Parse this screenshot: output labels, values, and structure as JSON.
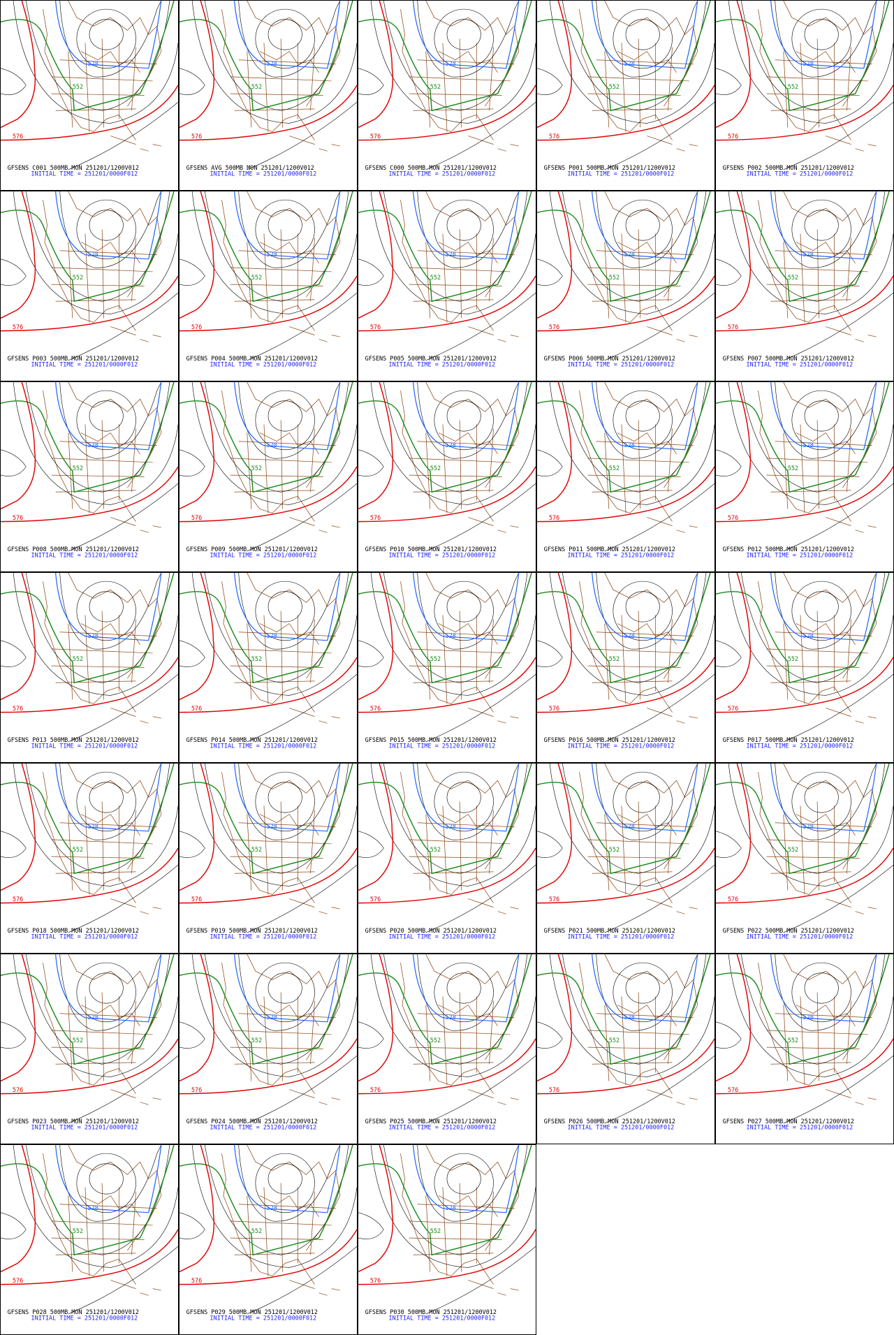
{
  "contour_labels": [
    "528",
    "552",
    "576"
  ],
  "panels": [
    {
      "title": "GFSENS C001 500MB MON 251201/1200V012",
      "init": "INITIAL TIME = 251201/0000F012"
    },
    {
      "title": "GFSENS AVG 500MB MON 251201/1200V012",
      "init": "INITIAL TIME = 251201/0000F012"
    },
    {
      "title": "GFSENS C000 500MB MON 251201/1200V012",
      "init": "INITIAL TIME = 251201/0000F012"
    },
    {
      "title": "GFSENS P001 500MB MON 251201/1200V012",
      "init": "INITIAL TIME = 251201/0000F012"
    },
    {
      "title": "GFSENS P002 500MB MON 251201/1200V012",
      "init": "INITIAL TIME = 251201/0000F012"
    },
    {
      "title": "GFSENS P003 500MB MON 251201/1200V012",
      "init": "INITIAL TIME = 251201/0000F012"
    },
    {
      "title": "GFSENS P004 500MB MON 251201/1200V012",
      "init": "INITIAL TIME = 251201/0000F012"
    },
    {
      "title": "GFSENS P005 500MB MON 251201/1200V012",
      "init": "INITIAL TIME = 251201/0000F012"
    },
    {
      "title": "GFSENS P006 500MB MON 251201/1200V012",
      "init": "INITIAL TIME = 251201/0000F012"
    },
    {
      "title": "GFSENS P007 500MB MON 251201/1200V012",
      "init": "INITIAL TIME = 251201/0000F012"
    },
    {
      "title": "GFSENS P008 500MB MON 251201/1200V012",
      "init": "INITIAL TIME = 251201/0000F012"
    },
    {
      "title": "GFSENS P009 500MB MON 251201/1200V012",
      "init": "INITIAL TIME = 251201/0000F012"
    },
    {
      "title": "GFSENS P010 500MB MON 251201/1200V012",
      "init": "INITIAL TIME = 251201/0000F012"
    },
    {
      "title": "GFSENS P011 500MB MON 251201/1200V012",
      "init": "INITIAL TIME = 251201/0000F012"
    },
    {
      "title": "GFSENS P012 500MB MON 251201/1200V012",
      "init": "INITIAL TIME = 251201/0000F012"
    },
    {
      "title": "GFSENS P013 500MB MON 251201/1200V012",
      "init": "INITIAL TIME = 251201/0000F012"
    },
    {
      "title": "GFSENS P014 500MB MON 251201/1200V012",
      "init": "INITIAL TIME = 251201/0000F012"
    },
    {
      "title": "GFSENS P015 500MB MON 251201/1200V012",
      "init": "INITIAL TIME = 251201/0000F012"
    },
    {
      "title": "GFSENS P016 500MB MON 251201/1200V012",
      "init": "INITIAL TIME = 251201/0000F012"
    },
    {
      "title": "GFSENS P017 500MB MON 251201/1200V012",
      "init": "INITIAL TIME = 251201/0000F012"
    },
    {
      "title": "GFSENS P018 500MB MON 251201/1200V012",
      "init": "INITIAL TIME = 251201/0000F012"
    },
    {
      "title": "GFSENS P019 500MB MON 251201/1200V012",
      "init": "INITIAL TIME = 251201/0000F012"
    },
    {
      "title": "GFSENS P020 500MB MON 251201/1200V012",
      "init": "INITIAL TIME = 251201/0000F012"
    },
    {
      "title": "GFSENS P021 500MB MON 251201/1200V012",
      "init": "INITIAL TIME = 251201/0000F012"
    },
    {
      "title": "GFSENS P022 500MB MON 251201/1200V012",
      "init": "INITIAL TIME = 251201/0000F012"
    },
    {
      "title": "GFSENS P023 500MB MON 251201/1200V012",
      "init": "INITIAL TIME = 251201/0000F012"
    },
    {
      "title": "GFSENS P024 500MB MON 251201/1200V012",
      "init": "INITIAL TIME = 251201/0000F012"
    },
    {
      "title": "GFSENS P025 500MB MON 251201/1200V012",
      "init": "INITIAL TIME = 251201/0000F012"
    },
    {
      "title": "GFSENS P026 500MB MON 251201/1200V012",
      "init": "INITIAL TIME = 251201/0000F012"
    },
    {
      "title": "GFSENS P027 500MB MON 251201/1200V012",
      "init": "INITIAL TIME = 251201/0000F012"
    },
    {
      "title": "GFSENS P028 500MB MON 251201/1200V012",
      "init": "INITIAL TIME = 251201/0000F012"
    },
    {
      "title": "GFSENS P029 500MB MON 251201/1200V012",
      "init": "INITIAL TIME = 251201/0000F012"
    },
    {
      "title": "GFSENS P030 500MB MON 251201/1200V012",
      "init": "INITIAL TIME = 251201/0000F012"
    }
  ]
}
